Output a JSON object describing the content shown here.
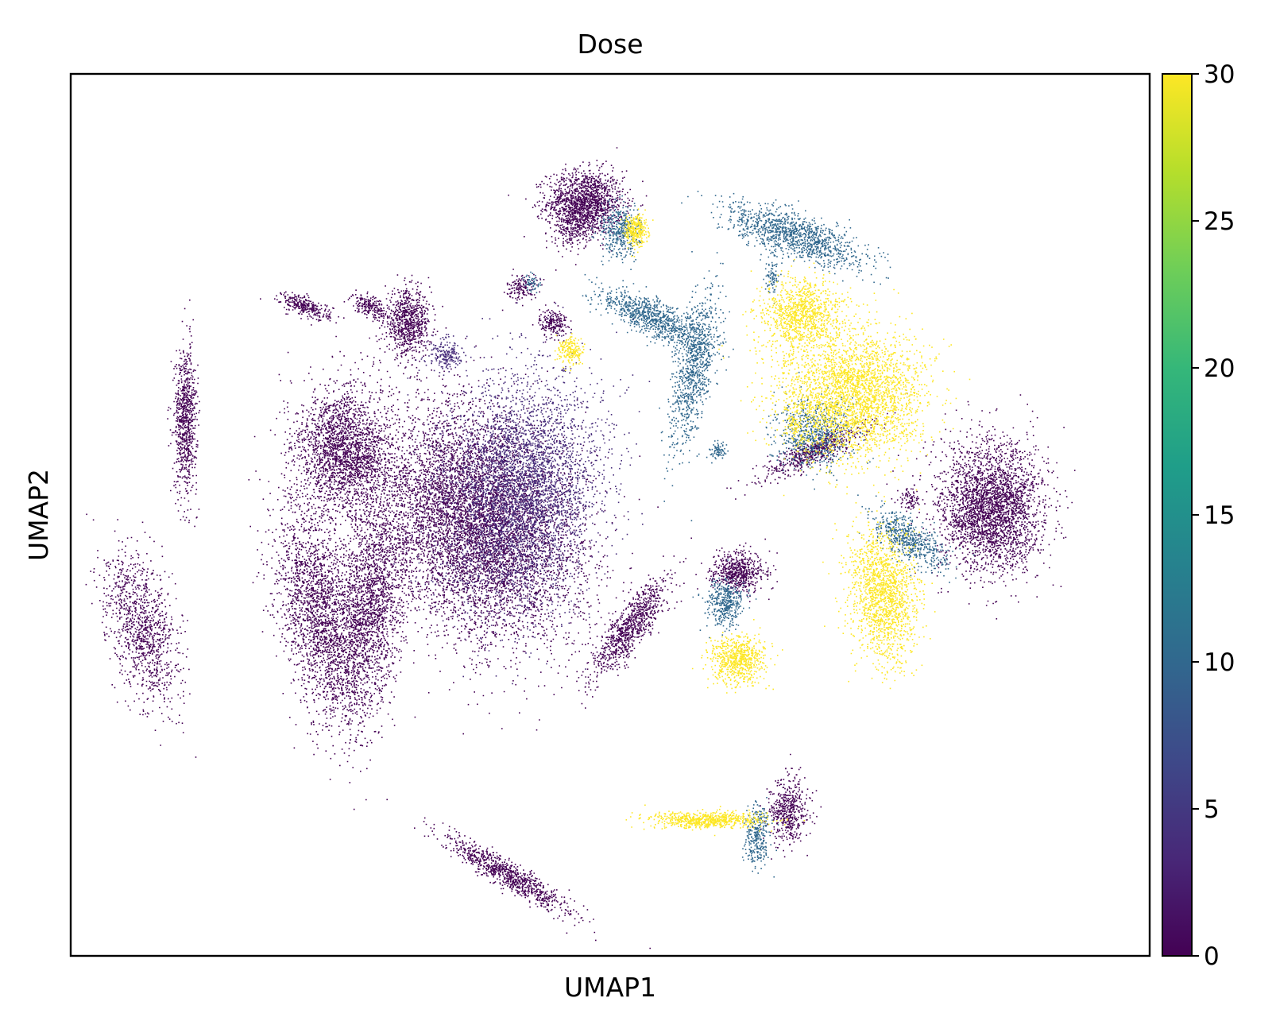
{
  "chart_data": {
    "type": "scatter",
    "title": "Dose",
    "xlabel": "UMAP1",
    "ylabel": "UMAP2",
    "grid": false,
    "axis_ticks_shown": false,
    "colormap": "viridis",
    "colormap_stops": [
      "#440154",
      "#482878",
      "#3e4989",
      "#31688e",
      "#26828e",
      "#1f9e89",
      "#35b779",
      "#6ece58",
      "#b5de2b",
      "#fde725"
    ],
    "colorbar": {
      "label": "",
      "range": [
        0,
        30
      ],
      "ticks": [
        0,
        5,
        10,
        15,
        20,
        25,
        30
      ],
      "tick_labels": [
        "0",
        "5",
        "10",
        "15",
        "20",
        "25",
        "30"
      ]
    },
    "dose_levels_present": [
      0,
      3,
      10,
      30
    ],
    "dose_colors": {
      "0": "#440154",
      "3": "#472d7b",
      "10": "#31688e",
      "30": "#fde725"
    },
    "clusters": [
      {
        "dose": 0,
        "x": 2.6,
        "y": 8.9,
        "sx": 0.3,
        "sy": 0.2,
        "rot": 0,
        "n": 1500
      },
      {
        "dose": 0,
        "x": 2.4,
        "y": 8.6,
        "sx": 0.14,
        "sy": 0.14,
        "rot": 0,
        "n": 200
      },
      {
        "dose": 10,
        "x": 3.15,
        "y": 8.55,
        "sx": 0.16,
        "sy": 0.16,
        "rot": 0,
        "n": 400
      },
      {
        "dose": 30,
        "x": 3.4,
        "y": 8.55,
        "sx": 0.09,
        "sy": 0.11,
        "rot": 0,
        "n": 300
      },
      {
        "dose": 10,
        "x": 5.9,
        "y": 8.5,
        "sx": 0.55,
        "sy": 0.13,
        "rot": -15,
        "n": 1200
      },
      {
        "dose": 10,
        "x": 5.55,
        "y": 8.0,
        "sx": 0.05,
        "sy": 0.12,
        "rot": 0,
        "n": 80
      },
      {
        "dose": 30,
        "x": 6.0,
        "y": 7.5,
        "sx": 0.32,
        "sy": 0.22,
        "rot": 0,
        "n": 1000
      },
      {
        "dose": 10,
        "x": 3.7,
        "y": 7.45,
        "sx": 0.45,
        "sy": 0.11,
        "rot": -20,
        "n": 900
      },
      {
        "dose": 10,
        "x": 4.3,
        "y": 6.8,
        "sx": 0.15,
        "sy": 0.5,
        "rot": -15,
        "n": 900
      },
      {
        "dose": 0,
        "x": 2.1,
        "y": 7.4,
        "sx": 0.11,
        "sy": 0.09,
        "rot": 0,
        "n": 200
      },
      {
        "dose": 30,
        "x": 2.35,
        "y": 7.05,
        "sx": 0.1,
        "sy": 0.09,
        "rot": 0,
        "n": 200
      },
      {
        "dose": 0,
        "x": 1.6,
        "y": 7.85,
        "sx": 0.12,
        "sy": 0.08,
        "rot": 0,
        "n": 150
      },
      {
        "dose": 10,
        "x": 1.75,
        "y": 7.9,
        "sx": 0.06,
        "sy": 0.05,
        "rot": 0,
        "n": 50
      },
      {
        "dose": 30,
        "x": 6.8,
        "y": 6.5,
        "sx": 0.55,
        "sy": 0.4,
        "rot": 0,
        "n": 3000
      },
      {
        "dose": 10,
        "x": 6.2,
        "y": 6.0,
        "sx": 0.3,
        "sy": 0.2,
        "rot": 0,
        "n": 700
      },
      {
        "dose": 0,
        "x": 6.2,
        "y": 5.8,
        "sx": 0.45,
        "sy": 0.08,
        "rot": 20,
        "n": 600
      },
      {
        "dose": 30,
        "x": 5.9,
        "y": 6.1,
        "sx": 0.06,
        "sy": 0.1,
        "rot": 0,
        "n": 80
      },
      {
        "dose": 10,
        "x": 4.7,
        "y": 5.8,
        "sx": 0.06,
        "sy": 0.05,
        "rot": 0,
        "n": 80
      },
      {
        "dose": 0,
        "x": -0.2,
        "y": 7.4,
        "sx": 0.18,
        "sy": 0.2,
        "rot": 0,
        "n": 800
      },
      {
        "dose": 3,
        "x": 0.4,
        "y": 7.0,
        "sx": 0.14,
        "sy": 0.1,
        "rot": 0,
        "n": 200
      },
      {
        "dose": 0,
        "x": -1.8,
        "y": 7.6,
        "sx": 0.2,
        "sy": 0.06,
        "rot": -15,
        "n": 300
      },
      {
        "dose": 0,
        "x": -0.8,
        "y": 7.6,
        "sx": 0.15,
        "sy": 0.06,
        "rot": -20,
        "n": 200
      },
      {
        "dose": 0,
        "x": -3.7,
        "y": 6.2,
        "sx": 0.09,
        "sy": 0.45,
        "rot": 0,
        "n": 800
      },
      {
        "dose": 0,
        "x": -1.2,
        "y": 5.8,
        "sx": 0.35,
        "sy": 0.4,
        "rot": 30,
        "n": 2200
      },
      {
        "dose": 3,
        "x": 1.6,
        "y": 5.3,
        "sx": 0.6,
        "sy": 0.75,
        "rot": -20,
        "n": 4000
      },
      {
        "dose": 0,
        "x": 0.9,
        "y": 4.9,
        "sx": 0.85,
        "sy": 0.65,
        "rot": -30,
        "n": 7000
      },
      {
        "dose": 0,
        "x": -4.4,
        "y": 3.6,
        "sx": 0.25,
        "sy": 0.5,
        "rot": 20,
        "n": 1100
      },
      {
        "dose": 0,
        "x": -1.6,
        "y": 3.8,
        "sx": 0.3,
        "sy": 0.7,
        "rot": 15,
        "n": 2200
      },
      {
        "dose": 0,
        "x": -0.8,
        "y": 3.8,
        "sx": 0.25,
        "sy": 0.7,
        "rot": -10,
        "n": 2000
      },
      {
        "dose": 0,
        "x": 3.3,
        "y": 3.6,
        "sx": 0.4,
        "sy": 0.12,
        "rot": 45,
        "n": 900
      },
      {
        "dose": 0,
        "x": 5.0,
        "y": 4.3,
        "sx": 0.22,
        "sy": 0.12,
        "rot": 0,
        "n": 600
      },
      {
        "dose": 10,
        "x": 4.8,
        "y": 3.9,
        "sx": 0.15,
        "sy": 0.15,
        "rot": 0,
        "n": 400
      },
      {
        "dose": 30,
        "x": 5.0,
        "y": 3.2,
        "sx": 0.22,
        "sy": 0.15,
        "rot": 0,
        "n": 700
      },
      {
        "dose": 30,
        "x": 7.3,
        "y": 4.0,
        "sx": 0.26,
        "sy": 0.4,
        "rot": 10,
        "n": 1600
      },
      {
        "dose": 10,
        "x": 7.7,
        "y": 4.7,
        "sx": 0.32,
        "sy": 0.12,
        "rot": -25,
        "n": 600
      },
      {
        "dose": 0,
        "x": 9.0,
        "y": 5.1,
        "sx": 0.4,
        "sy": 0.4,
        "rot": 0,
        "n": 3000
      },
      {
        "dose": 0,
        "x": 7.7,
        "y": 5.2,
        "sx": 0.08,
        "sy": 0.07,
        "rot": 0,
        "n": 80
      },
      {
        "dose": 30,
        "x": 4.5,
        "y": 1.2,
        "sx": 0.45,
        "sy": 0.05,
        "rot": 0,
        "n": 700
      },
      {
        "dose": 10,
        "x": 5.3,
        "y": 1.0,
        "sx": 0.1,
        "sy": 0.2,
        "rot": -10,
        "n": 300
      },
      {
        "dose": 0,
        "x": 5.8,
        "y": 1.3,
        "sx": 0.15,
        "sy": 0.2,
        "rot": 0,
        "n": 500
      },
      {
        "dose": 0,
        "x": 1.4,
        "y": 0.5,
        "sx": 0.55,
        "sy": 0.08,
        "rot": -25,
        "n": 900
      }
    ],
    "xlim": [
      -5.5,
      11.5
    ],
    "ylim": [
      -0.5,
      10.5
    ]
  }
}
